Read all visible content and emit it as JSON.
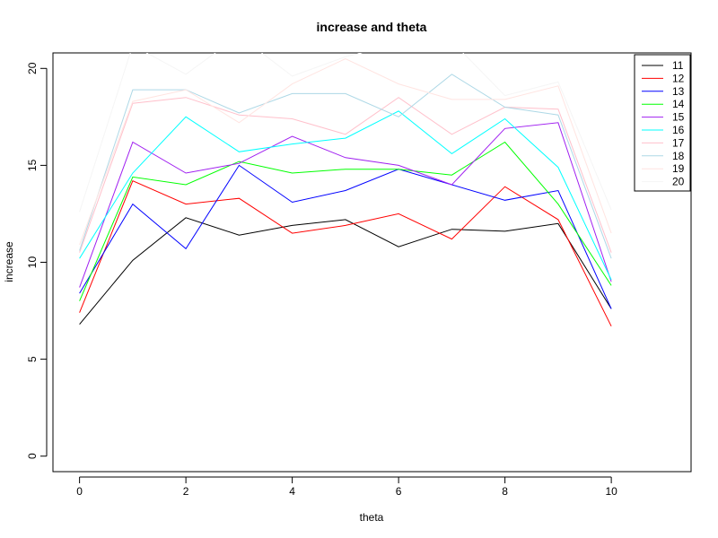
{
  "chart_data": {
    "type": "line",
    "title": "increase and theta",
    "xlabel": "theta",
    "ylabel": "increase",
    "x": [
      0,
      1,
      2,
      3,
      4,
      5,
      6,
      7,
      8,
      9,
      10
    ],
    "xlim": [
      -0.5,
      11.5
    ],
    "ylim": [
      -0.8,
      20.8
    ],
    "xticks": [
      0,
      2,
      4,
      6,
      8,
      10
    ],
    "yticks": [
      0,
      5,
      10,
      15,
      20
    ],
    "grid": false,
    "legend_position": "top-right",
    "series": [
      {
        "name": "11",
        "color": "#000000",
        "values": [
          6.8,
          10.1,
          12.3,
          11.4,
          11.9,
          12.2,
          10.8,
          11.7,
          11.6,
          12.0,
          7.6
        ]
      },
      {
        "name": "12",
        "color": "#FF0000",
        "values": [
          7.4,
          14.2,
          13.0,
          13.3,
          11.5,
          11.9,
          12.5,
          11.2,
          13.9,
          12.2,
          6.7
        ]
      },
      {
        "name": "13",
        "color": "#0000FF",
        "values": [
          8.4,
          13.0,
          10.7,
          15.0,
          13.1,
          13.7,
          14.8,
          14.0,
          13.2,
          13.7,
          7.6
        ]
      },
      {
        "name": "14",
        "color": "#00FF00",
        "values": [
          8.0,
          14.4,
          14.0,
          15.2,
          14.6,
          14.8,
          14.8,
          14.5,
          16.2,
          13.0,
          8.8
        ]
      },
      {
        "name": "15",
        "color": "#A020F0",
        "values": [
          8.7,
          16.2,
          14.6,
          15.1,
          16.5,
          15.4,
          15.0,
          14.0,
          16.9,
          17.2,
          9.0
        ]
      },
      {
        "name": "16",
        "color": "#00FFFF",
        "values": [
          10.2,
          14.6,
          17.5,
          15.7,
          16.1,
          16.4,
          17.8,
          15.6,
          17.4,
          14.9,
          9.1
        ]
      },
      {
        "name": "17",
        "color": "#FFC0CB",
        "values": [
          10.5,
          18.2,
          18.5,
          17.6,
          17.4,
          16.6,
          18.5,
          16.6,
          18.0,
          17.9,
          10.5
        ]
      },
      {
        "name": "18",
        "color": "#ADD8E6",
        "values": [
          10.6,
          18.9,
          18.9,
          17.7,
          18.7,
          18.7,
          17.5,
          19.7,
          18.0,
          17.6,
          10.2
        ]
      },
      {
        "name": "19",
        "color": "#FFE4E1",
        "values": [
          10.9,
          18.3,
          18.9,
          17.2,
          19.2,
          20.5,
          19.2,
          18.4,
          18.4,
          19.1,
          11.5
        ]
      },
      {
        "name": "20",
        "color": "#F5F5F5",
        "values": [
          12.6,
          21.2,
          19.7,
          21.7,
          19.6,
          20.6,
          21.3,
          21.4,
          18.6,
          19.3,
          12.7
        ]
      }
    ]
  }
}
